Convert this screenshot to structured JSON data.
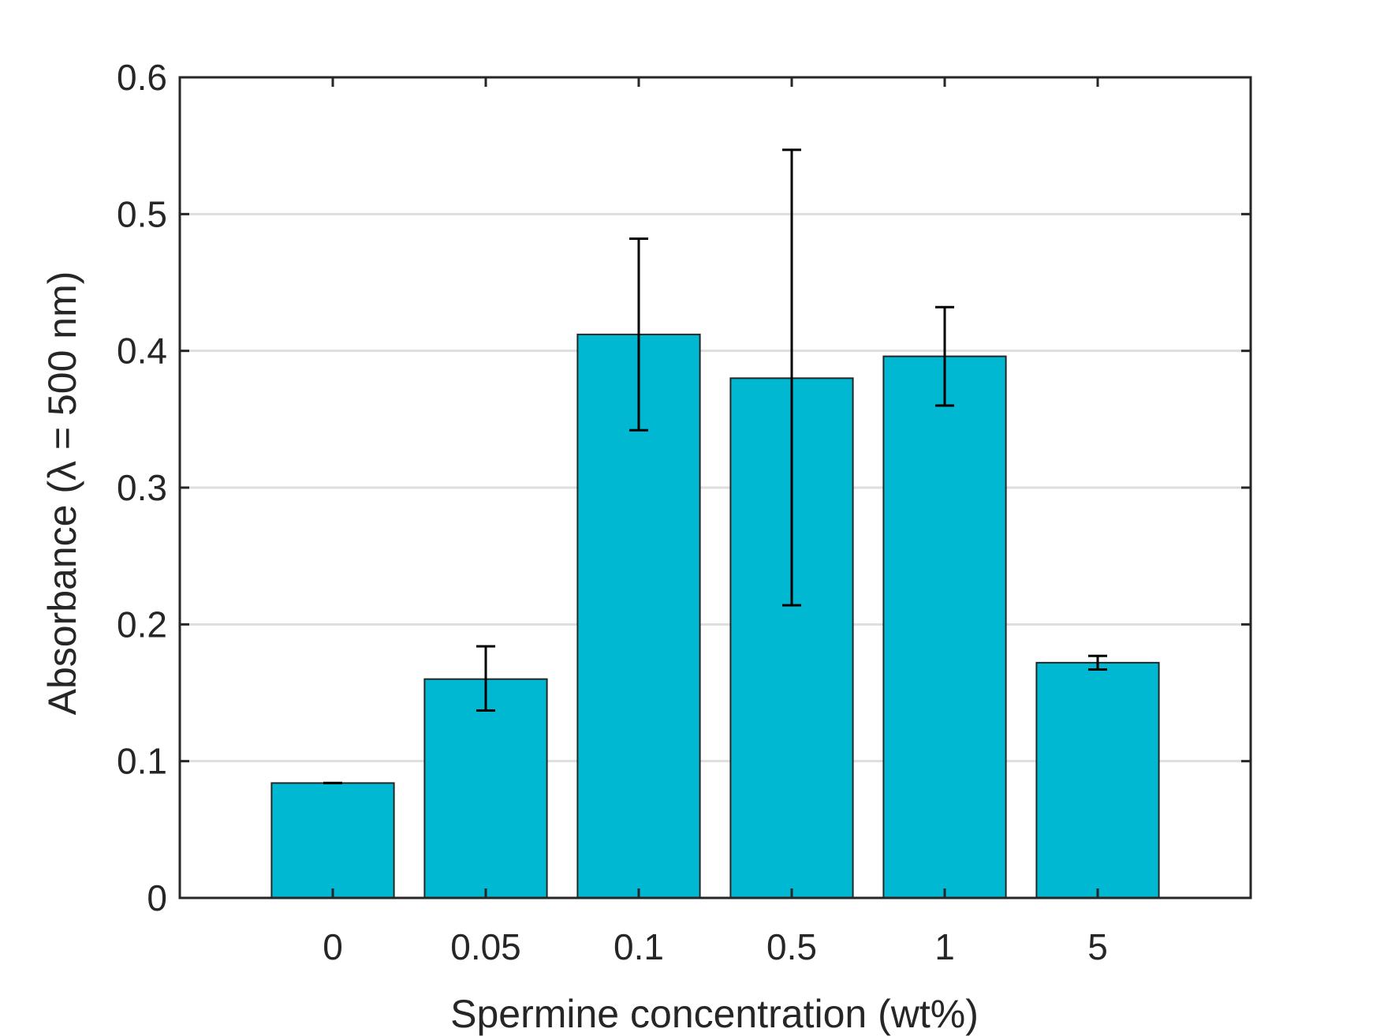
{
  "chart_data": {
    "type": "bar",
    "title": "",
    "xlabel": "Spermine concentration (wt%)",
    "ylabel": "Absorbance (λ = 500 nm)",
    "categories": [
      "0",
      "0.05",
      "0.1",
      "0.5",
      "1",
      "5"
    ],
    "values": [
      0.084,
      0.16,
      0.412,
      0.38,
      0.396,
      0.172
    ],
    "error_low": [
      0.084,
      0.137,
      0.342,
      0.214,
      0.36,
      0.167
    ],
    "error_high": [
      0.084,
      0.184,
      0.482,
      0.547,
      0.432,
      0.177
    ],
    "ylim": [
      0,
      0.6
    ],
    "yticks": [
      "0",
      "0.1",
      "0.2",
      "0.3",
      "0.4",
      "0.5",
      "0.6"
    ],
    "y_gridlines": true,
    "bar_color": "#00b8d2",
    "bar_edge_color": "#262626",
    "error_bar_color": "#000000",
    "axis_color": "#262626",
    "grid_color": "#dedede"
  }
}
